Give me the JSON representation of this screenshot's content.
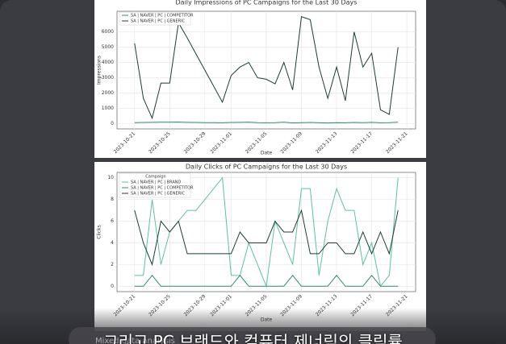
{
  "chart_data": [
    {
      "type": "line",
      "title": "Daily Impressions of PC Campaigns for the Last 30 Days",
      "x_label": "Date",
      "y_label": "Impressions",
      "x": [
        "2023-10-21",
        "2023-10-22",
        "2023-10-23",
        "2023-10-24",
        "2023-10-25",
        "2023-10-26",
        "2023-10-27",
        "2023-10-28",
        "2023-10-29",
        "2023-10-30",
        "2023-10-31",
        "2023-11-01",
        "2023-11-02",
        "2023-11-03",
        "2023-11-04",
        "2023-11-05",
        "2023-11-06",
        "2023-11-07",
        "2023-11-08",
        "2023-11-09",
        "2023-11-10",
        "2023-11-11",
        "2023-11-12",
        "2023-11-13",
        "2023-11-14",
        "2023-11-15",
        "2023-11-16",
        "2023-11-17",
        "2023-11-18",
        "2023-11-19",
        "2023-11-20"
      ],
      "series": [
        {
          "name": "SA | NAVER | PC | COMPETITOR",
          "color": "#2e8b6a",
          "values": [
            60,
            70,
            80,
            90,
            90,
            100,
            80,
            70,
            60,
            60,
            50,
            70,
            80,
            90,
            60,
            50,
            60,
            90,
            40,
            60,
            70,
            50,
            40,
            60,
            50,
            70,
            60,
            80,
            50,
            60,
            90
          ]
        },
        {
          "name": "SA | NAVER | PC | GENERIC",
          "color": "#1f3d34",
          "values": [
            5250,
            1650,
            350,
            2650,
            2650,
            6600,
            5600,
            4550,
            3500,
            2450,
            1400,
            3150,
            3700,
            4000,
            3000,
            2900,
            2600,
            4000,
            2200,
            7000,
            6800,
            3700,
            1650,
            3700,
            1500,
            6000,
            3700,
            4600,
            900,
            600,
            5000
          ]
        }
      ],
      "xlim": [
        "2023-10-19",
        "2023-11-22"
      ],
      "xticks": [
        "2023-10-21",
        "2023-10-25",
        "2023-10-29",
        "2023-11-01",
        "2023-11-05",
        "2023-11-09",
        "2023-11-13",
        "2023-11-17",
        "2023-11-21"
      ],
      "ylim": [
        -350,
        7350
      ],
      "yticks": [
        0,
        1000,
        2000,
        3000,
        4000,
        5000,
        6000
      ],
      "grid": true,
      "legend": "upper left"
    },
    {
      "type": "line",
      "title": "Daily Clicks of PC Campaigns for the Last 30 Days",
      "x_label": "Date",
      "y_label": "Clicks",
      "legend_title": "Campaign",
      "x": [
        "2023-10-21",
        "2023-10-22",
        "2023-10-23",
        "2023-10-24",
        "2023-10-25",
        "2023-10-26",
        "2023-10-27",
        "2023-10-28",
        "2023-10-29",
        "2023-10-30",
        "2023-10-31",
        "2023-11-01",
        "2023-11-02",
        "2023-11-03",
        "2023-11-04",
        "2023-11-05",
        "2023-11-06",
        "2023-11-07",
        "2023-11-08",
        "2023-11-09",
        "2023-11-10",
        "2023-11-11",
        "2023-11-12",
        "2023-11-13",
        "2023-11-14",
        "2023-11-15",
        "2023-11-16",
        "2023-11-17",
        "2023-11-18",
        "2023-11-19",
        "2023-11-20"
      ],
      "series": [
        {
          "name": "SA | NAVER | PC | BRAND",
          "color": "#5cc2a0",
          "values": [
            1,
            1,
            8,
            2,
            5,
            6,
            7,
            7,
            8,
            9,
            10,
            1,
            1,
            4,
            2,
            0,
            6,
            4,
            2,
            9,
            9,
            1,
            6,
            9,
            7,
            7,
            2,
            4,
            0,
            1,
            10
          ]
        },
        {
          "name": "SA | NAVER | PC | COMPETITOR",
          "color": "#2e8b6a",
          "values": [
            0,
            0,
            1,
            0,
            0,
            0,
            0,
            0,
            0,
            0,
            0,
            0,
            1,
            0,
            0,
            0,
            0,
            0,
            1,
            0,
            0,
            0,
            0,
            1,
            0,
            0,
            0,
            1,
            0,
            0,
            0
          ]
        },
        {
          "name": "SA | NAVER | PC | GENERIC",
          "color": "#1f3d34",
          "values": [
            7,
            4,
            2,
            6,
            5,
            6,
            3,
            3,
            3,
            3,
            3,
            3,
            5,
            4,
            4,
            4,
            6,
            5,
            5,
            7,
            3,
            3,
            4,
            4,
            3,
            3,
            5,
            3,
            5,
            3,
            7
          ]
        }
      ],
      "xlim": [
        "2023-10-19",
        "2023-11-22"
      ],
      "xticks": [
        "2023-10-21",
        "2023-10-25",
        "2023-10-29",
        "2023-11-01",
        "2023-11-05",
        "2023-11-09",
        "2023-11-13",
        "2023-11-17",
        "2023-11-21"
      ],
      "ylim": [
        -0.5,
        10.5
      ],
      "yticks": [
        0,
        2,
        4,
        6,
        8,
        10
      ],
      "grid": true,
      "legend": "upper left"
    }
  ],
  "overlay": {
    "caption": "그리고 PC 브랜드와 컴퓨터 제너릭의 클릭률",
    "hint": "Mixed data analysis"
  }
}
